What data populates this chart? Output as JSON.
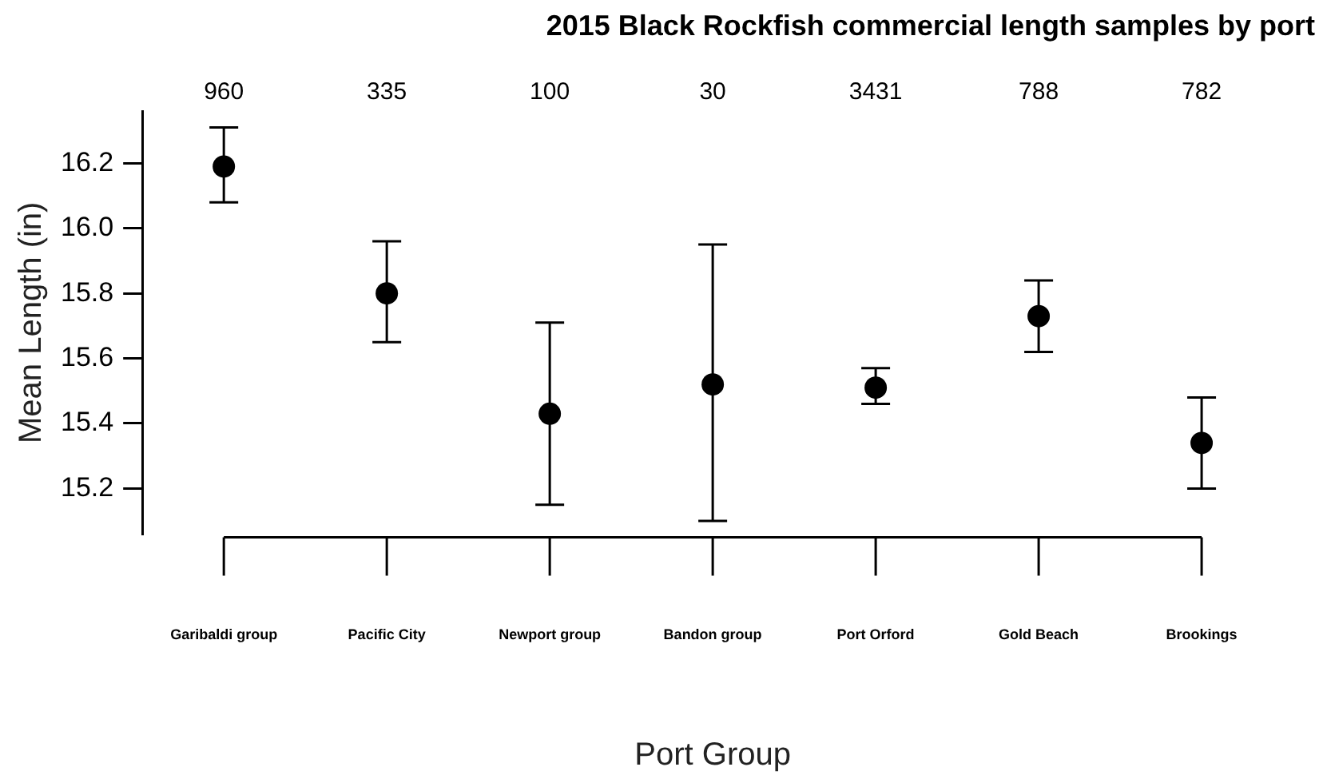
{
  "chart_data": {
    "type": "scatter",
    "title": "2015 Black Rockfish commercial length samples by port",
    "xlabel": "Port Group",
    "ylabel": "Mean Length (in)",
    "categories": [
      "Garibaldi group",
      "Pacific City",
      "Newport group",
      "Bandon group",
      "Port Orford",
      "Gold Beach",
      "Brookings"
    ],
    "values": [
      16.19,
      15.8,
      15.43,
      15.52,
      15.51,
      15.73,
      15.34
    ],
    "errors": [
      [
        16.08,
        16.31
      ],
      [
        15.65,
        15.96
      ],
      [
        15.15,
        15.71
      ],
      [
        15.1,
        15.95
      ],
      [
        15.46,
        15.57
      ],
      [
        15.62,
        15.84
      ],
      [
        15.2,
        15.48
      ]
    ],
    "color": "#000000",
    "marker": "circle",
    "grid": false,
    "legend": false,
    "ylim": [
      15.06,
      16.36
    ],
    "yticks": [
      {
        "value": 15.2,
        "label": "15.2"
      },
      {
        "value": 15.4,
        "label": "15.4"
      },
      {
        "value": 15.6,
        "label": "15.6"
      },
      {
        "value": 15.8,
        "label": "15.8"
      },
      {
        "value": 16.0,
        "label": "16.0"
      },
      {
        "value": 16.2,
        "label": "16.2"
      }
    ],
    "annotations": [
      "960",
      "335",
      "100",
      "30",
      "3431",
      "788",
      "782"
    ]
  }
}
